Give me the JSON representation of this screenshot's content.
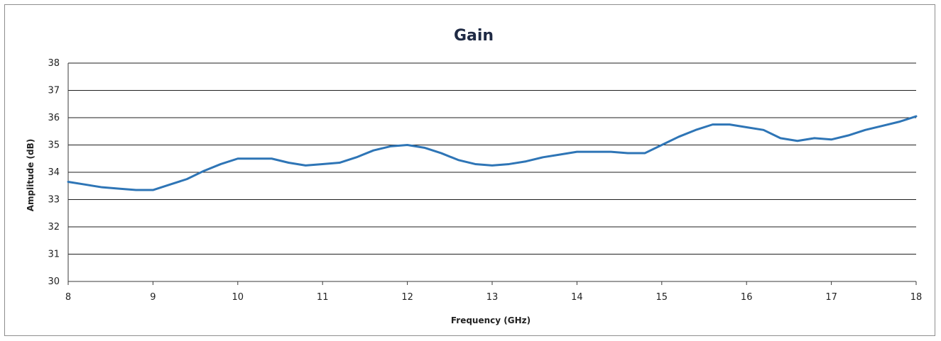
{
  "chart_data": {
    "type": "line",
    "title": "Gain",
    "xlabel": "Frequency (GHz)",
    "ylabel": "Amplitude (dB)",
    "xlim": [
      8,
      18
    ],
    "ylim": [
      30,
      38
    ],
    "xticks": [
      8,
      9,
      10,
      11,
      12,
      13,
      14,
      15,
      16,
      17,
      18
    ],
    "yticks": [
      30,
      31,
      32,
      33,
      34,
      35,
      36,
      37,
      38
    ],
    "grid": "horizontal",
    "legend": "none",
    "series": [
      {
        "color": "#2e75b6",
        "x": [
          8.0,
          8.2,
          8.4,
          8.6,
          8.8,
          9.0,
          9.2,
          9.4,
          9.6,
          9.8,
          10.0,
          10.2,
          10.4,
          10.6,
          10.8,
          11.0,
          11.2,
          11.4,
          11.6,
          11.8,
          12.0,
          12.2,
          12.4,
          12.6,
          12.8,
          13.0,
          13.2,
          13.4,
          13.6,
          13.8,
          14.0,
          14.2,
          14.4,
          14.6,
          14.8,
          15.0,
          15.2,
          15.4,
          15.6,
          15.8,
          16.0,
          16.2,
          16.4,
          16.6,
          16.8,
          17.0,
          17.2,
          17.4,
          17.6,
          17.8,
          18.0
        ],
        "y": [
          33.65,
          33.55,
          33.45,
          33.4,
          33.35,
          33.35,
          33.55,
          33.75,
          34.05,
          34.3,
          34.5,
          34.5,
          34.5,
          34.35,
          34.25,
          34.3,
          34.35,
          34.55,
          34.8,
          34.95,
          35.0,
          34.9,
          34.7,
          34.45,
          34.3,
          34.25,
          34.3,
          34.4,
          34.55,
          34.65,
          34.75,
          34.75,
          34.75,
          34.7,
          34.7,
          35.0,
          35.3,
          35.55,
          35.75,
          35.75,
          35.65,
          35.55,
          35.25,
          35.15,
          35.25,
          35.2,
          35.35,
          35.55,
          35.7,
          35.85,
          36.05
        ]
      }
    ]
  }
}
